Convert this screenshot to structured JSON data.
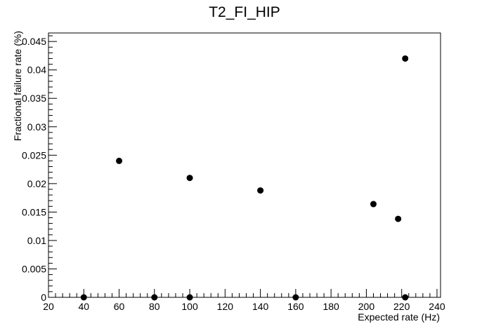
{
  "chart_data": {
    "type": "scatter",
    "title": "T2_FI_HIP",
    "xlabel": "Expected rate (Hz)",
    "ylabel": "Fractional failure rate (%)",
    "xlim": [
      20,
      242
    ],
    "ylim": [
      0,
      0.0465
    ],
    "x_ticks": [
      "20",
      "40",
      "60",
      "80",
      "100",
      "120",
      "140",
      "160",
      "180",
      "200",
      "220",
      "240"
    ],
    "y_ticks": [
      "0",
      "0.005",
      "0.01",
      "0.015",
      "0.02",
      "0.025",
      "0.03",
      "0.035",
      "0.04",
      "0.045"
    ],
    "grid": false,
    "points": [
      {
        "x": 40,
        "y": 0
      },
      {
        "x": 60,
        "y": 0.024
      },
      {
        "x": 80,
        "y": 0
      },
      {
        "x": 100,
        "y": 0.021
      },
      {
        "x": 100,
        "y": 0
      },
      {
        "x": 140,
        "y": 0.0188
      },
      {
        "x": 160,
        "y": 0
      },
      {
        "x": 204,
        "y": 0.0164
      },
      {
        "x": 218,
        "y": 0.0138
      },
      {
        "x": 222,
        "y": 0.042
      },
      {
        "x": 222,
        "y": 0
      }
    ],
    "marker_color": "#000000"
  }
}
